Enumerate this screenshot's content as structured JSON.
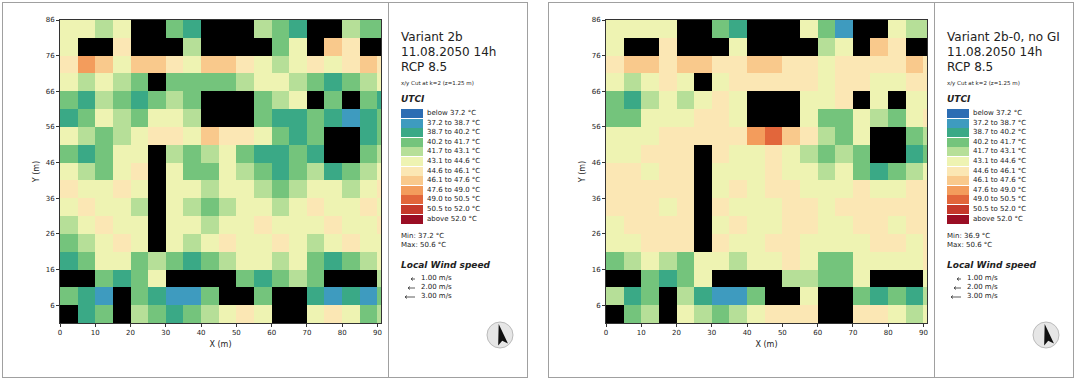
{
  "chart_data": [
    {
      "type": "heatmap",
      "title": [
        "Variant 2b",
        "11.08.2050 14h",
        "RCP 8.5"
      ],
      "subtitle": "x/y Cut at k=2 (z=1.25 m)",
      "x_label": "X (m)",
      "y_label": "Y (m)",
      "xlim": [
        0,
        91
      ],
      "ylim": [
        1,
        86
      ],
      "xticks": [
        0,
        10,
        20,
        30,
        40,
        50,
        60,
        70,
        80,
        90
      ],
      "yticks": [
        6,
        16,
        26,
        36,
        46,
        56,
        66,
        76,
        86
      ],
      "grid": false,
      "x": [
        2.5,
        7.5,
        12.5,
        17.5,
        22.5,
        27.5,
        32.5,
        37.5,
        42.5,
        47.5,
        52.5,
        57.5,
        62.5,
        67.5,
        72.5,
        77.5,
        82.5,
        87.5,
        92.5
      ],
      "y": [
        83.5,
        78.5,
        73.5,
        68.5,
        63.5,
        58.5,
        53.5,
        48.5,
        43.5,
        38.5,
        33.5,
        28.5,
        23.5,
        18.5,
        13.5,
        8.5,
        3.5
      ],
      "cells": [
        [
          43.8,
          43.8,
          42.4,
          43.8,
          null,
          null,
          41,
          39.5,
          null,
          null,
          null,
          42.4,
          41,
          39.5,
          null,
          null,
          42.4,
          41,
          41
        ],
        [
          43.8,
          null,
          null,
          45.3,
          null,
          null,
          null,
          42.4,
          null,
          null,
          null,
          null,
          41,
          43.8,
          null,
          46.8,
          45.3,
          null,
          null
        ],
        [
          45.3,
          48.3,
          46.8,
          43.8,
          46.8,
          46.8,
          45.3,
          43.8,
          46.8,
          46.8,
          45.3,
          43.8,
          42.4,
          43.8,
          45.3,
          43.8,
          45.3,
          46.8,
          45.3
        ],
        [
          43.8,
          42.4,
          43.8,
          42.4,
          41,
          null,
          41,
          41,
          41,
          41,
          42.4,
          43.8,
          43.8,
          42.4,
          41,
          39.5,
          41,
          42.4,
          43.8
        ],
        [
          41,
          39.5,
          42.4,
          41,
          39.5,
          41,
          42.4,
          41,
          null,
          null,
          null,
          41,
          42.4,
          43.8,
          null,
          41,
          null,
          41,
          39.5
        ],
        [
          39.5,
          41,
          43.8,
          42.4,
          41,
          43.8,
          43.8,
          42.4,
          null,
          null,
          null,
          41,
          39.5,
          39.5,
          41,
          39.5,
          38,
          39.5,
          41
        ],
        [
          43.8,
          42.4,
          41,
          42.4,
          43.8,
          45.3,
          45.3,
          43.8,
          46.8,
          45.3,
          45.3,
          43.8,
          41,
          39.5,
          41,
          null,
          null,
          39.5,
          41
        ],
        [
          41,
          39.5,
          41,
          43.8,
          43.8,
          null,
          42.4,
          41,
          42.4,
          43.8,
          41,
          39.5,
          39.5,
          41,
          39.5,
          null,
          null,
          41,
          42.4
        ],
        [
          43.8,
          42.4,
          41,
          43.8,
          45.3,
          null,
          43.8,
          41,
          41,
          43.8,
          42.4,
          41,
          39.5,
          41,
          42.4,
          39.5,
          41,
          42.4,
          43.8
        ],
        [
          45.3,
          43.8,
          43.8,
          45.3,
          43.8,
          null,
          43.8,
          43.8,
          42.4,
          43.8,
          43.8,
          42.4,
          41,
          42.4,
          43.8,
          43.8,
          42.4,
          43.8,
          45.3
        ],
        [
          43.8,
          45.3,
          43.8,
          43.8,
          42.4,
          null,
          43.8,
          42.4,
          41,
          42.4,
          43.8,
          43.8,
          42.4,
          43.8,
          45.3,
          43.8,
          43.8,
          45.3,
          43.8
        ],
        [
          42.4,
          43.8,
          45.3,
          43.8,
          43.8,
          null,
          43.8,
          43.8,
          42.4,
          43.8,
          43.8,
          45.3,
          43.8,
          43.8,
          43.8,
          45.3,
          43.8,
          43.8,
          45.3
        ],
        [
          41,
          42.4,
          43.8,
          45.3,
          43.8,
          null,
          43.8,
          42.4,
          43.8,
          45.3,
          43.8,
          43.8,
          45.3,
          43.8,
          42.4,
          43.8,
          45.3,
          43.8,
          43.8
        ],
        [
          39.5,
          41,
          43.8,
          43.8,
          41,
          42.4,
          41,
          39.5,
          41,
          42.4,
          43.8,
          43.8,
          42.4,
          43.8,
          41,
          39.5,
          41,
          42.4,
          43.8
        ],
        [
          null,
          null,
          41,
          39.5,
          41,
          43.8,
          null,
          null,
          null,
          null,
          41,
          39.5,
          41,
          42.4,
          41,
          null,
          null,
          null,
          42.4
        ],
        [
          41,
          39.5,
          38,
          null,
          41,
          39.5,
          38,
          38,
          41,
          null,
          null,
          41,
          null,
          null,
          39.5,
          38,
          39.5,
          38,
          41
        ],
        [
          null,
          39.5,
          41,
          null,
          42.4,
          41,
          39.5,
          41,
          42.4,
          43.8,
          45.3,
          43.8,
          null,
          null,
          43.8,
          45.3,
          43.8,
          41,
          42.4
        ]
      ],
      "colorbar": {
        "title": "UTCI",
        "bins": [
          37.2,
          38.7,
          40.2,
          41.7,
          43.1,
          44.6,
          46.1,
          47.6,
          49.0,
          50.5,
          52.0
        ],
        "labels": [
          "below 37.2 °C",
          "37.2 to 38.7 °C",
          "38.7 to 40.2 °C",
          "40.2 to 41.7 °C",
          "41.7 to 43.1 °C",
          "43.1 to 44.6 °C",
          "44.6 to 46.1 °C",
          "46.1 to 47.6 °C",
          "47.6 to 49.0 °C",
          "49.0 to 50.5 °C",
          "50.5 to 52.0 °C",
          "above 52.0 °C"
        ],
        "colors": [
          "#2c6db3",
          "#3e9bbf",
          "#3aa986",
          "#74c47c",
          "#b6df98",
          "#eef3b2",
          "#fbe7b4",
          "#f9c98c",
          "#f39c5c",
          "#e2663b",
          "#c5392b",
          "#9a0e24"
        ]
      },
      "annotations": [
        "Min: 37.2 °C",
        "Max: 50.6 °C"
      ],
      "wind_legend": {
        "title": "Local Wind speed",
        "labels": [
          "1.00 m/s",
          "2.00 m/s",
          "3.00 m/s"
        ]
      }
    },
    {
      "type": "heatmap",
      "title": [
        "Variant 2b-0, no GI",
        "11.08.2050 14h",
        "RCP 8.5"
      ],
      "subtitle": "x/y Cut at k=2 (z=1.25 m)",
      "x_label": "X (m)",
      "y_label": "Y (m)",
      "xlim": [
        0,
        91
      ],
      "ylim": [
        1,
        86
      ],
      "xticks": [
        0,
        10,
        20,
        30,
        40,
        50,
        60,
        70,
        80,
        90
      ],
      "yticks": [
        6,
        16,
        26,
        36,
        46,
        56,
        66,
        76,
        86
      ],
      "grid": false,
      "x": [
        2.5,
        7.5,
        12.5,
        17.5,
        22.5,
        27.5,
        32.5,
        37.5,
        42.5,
        47.5,
        52.5,
        57.5,
        62.5,
        67.5,
        72.5,
        77.5,
        82.5,
        87.5,
        92.5
      ],
      "y": [
        83.5,
        78.5,
        73.5,
        68.5,
        63.5,
        58.5,
        53.5,
        48.5,
        43.5,
        38.5,
        33.5,
        28.5,
        23.5,
        18.5,
        13.5,
        8.5,
        3.5
      ],
      "cells": [
        [
          43.8,
          43.8,
          43.8,
          43.8,
          null,
          null,
          41,
          39.5,
          null,
          null,
          null,
          43.8,
          41,
          38,
          null,
          null,
          43.8,
          42.4,
          42.4
        ],
        [
          43.8,
          null,
          null,
          45.3,
          null,
          null,
          null,
          43.8,
          null,
          null,
          null,
          null,
          42.4,
          43.8,
          null,
          46.8,
          45.3,
          null,
          null
        ],
        [
          45.3,
          46.8,
          46.8,
          45.3,
          46.8,
          46.8,
          45.3,
          45.3,
          46.8,
          46.8,
          45.3,
          45.3,
          43.8,
          45.3,
          45.3,
          45.3,
          45.3,
          46.8,
          45.3
        ],
        [
          43.8,
          42.4,
          43.8,
          45.3,
          43.8,
          null,
          43.8,
          45.3,
          45.3,
          45.3,
          45.3,
          45.3,
          43.8,
          45.3,
          45.3,
          43.8,
          43.8,
          45.3,
          45.3
        ],
        [
          41,
          39.5,
          42.4,
          43.8,
          42.4,
          43.8,
          45.3,
          43.8,
          null,
          null,
          null,
          43.8,
          43.8,
          45.3,
          null,
          43.8,
          null,
          43.8,
          43.8
        ],
        [
          41,
          41,
          43.8,
          43.8,
          43.8,
          45.3,
          45.3,
          43.8,
          null,
          null,
          null,
          43.8,
          41,
          41,
          43.8,
          42.4,
          41,
          43.8,
          45.3
        ],
        [
          43.8,
          43.8,
          43.8,
          45.3,
          45.3,
          45.3,
          45.3,
          45.3,
          48.3,
          49.7,
          46.8,
          45.3,
          42.4,
          41,
          43.8,
          null,
          null,
          41,
          42.4
        ],
        [
          43.8,
          43.8,
          45.3,
          45.3,
          45.3,
          null,
          45.3,
          43.8,
          43.8,
          45.3,
          43.8,
          42.4,
          41,
          42.4,
          41,
          null,
          null,
          39.5,
          41
        ],
        [
          45.3,
          45.3,
          43.8,
          45.3,
          45.3,
          null,
          43.8,
          43.8,
          43.8,
          45.3,
          43.8,
          43.8,
          42.4,
          43.8,
          41,
          39.5,
          41,
          42.4,
          43.8
        ],
        [
          45.3,
          45.3,
          45.3,
          45.3,
          45.3,
          null,
          43.8,
          45.3,
          43.8,
          45.3,
          45.3,
          43.8,
          43.8,
          43.8,
          45.3,
          43.8,
          43.8,
          45.3,
          45.3
        ],
        [
          45.3,
          45.3,
          45.3,
          43.8,
          45.3,
          null,
          45.3,
          43.8,
          43.8,
          43.8,
          45.3,
          45.3,
          43.8,
          45.3,
          45.3,
          45.3,
          45.3,
          45.3,
          45.3
        ],
        [
          43.8,
          45.3,
          45.3,
          45.3,
          45.3,
          null,
          43.8,
          45.3,
          43.8,
          43.8,
          45.3,
          45.3,
          43.8,
          43.8,
          45.3,
          45.3,
          43.8,
          45.3,
          45.3
        ],
        [
          43.8,
          43.8,
          45.3,
          45.3,
          45.3,
          null,
          45.3,
          43.8,
          43.8,
          45.3,
          45.3,
          43.8,
          43.8,
          43.8,
          43.8,
          45.3,
          45.3,
          43.8,
          45.3
        ],
        [
          41,
          42.4,
          43.8,
          42.4,
          41,
          43.8,
          43.8,
          42.4,
          43.8,
          43.8,
          45.3,
          43.8,
          41,
          41,
          43.8,
          43.8,
          43.8,
          43.8,
          45.3
        ],
        [
          null,
          null,
          41,
          39.5,
          41,
          43.8,
          null,
          null,
          null,
          null,
          42.4,
          42.4,
          41,
          41,
          43.8,
          null,
          null,
          null,
          43.8
        ],
        [
          42.4,
          39.5,
          41,
          null,
          42.4,
          39.5,
          38,
          38,
          41,
          null,
          null,
          43.8,
          null,
          null,
          41,
          39.5,
          41,
          39.5,
          42.4
        ],
        [
          null,
          41,
          42.4,
          null,
          43.8,
          42.4,
          41,
          42.4,
          43.8,
          45.3,
          45.3,
          45.3,
          null,
          null,
          45.3,
          45.3,
          43.8,
          42.4,
          43.8
        ]
      ],
      "colorbar": {
        "title": "UTCI",
        "bins": [
          37.2,
          38.7,
          40.2,
          41.7,
          43.1,
          44.6,
          46.1,
          47.6,
          49.0,
          50.5,
          52.0
        ],
        "labels": [
          "below 37.2 °C",
          "37.2 to 38.7 °C",
          "38.7 to 40.2 °C",
          "40.2 to 41.7 °C",
          "41.7 to 43.1 °C",
          "43.1 to 44.6 °C",
          "44.6 to 46.1 °C",
          "46.1 to 47.6 °C",
          "47.6 to 49.0 °C",
          "49.0 to 50.5 °C",
          "50.5 to 52.0 °C",
          "above 52.0 °C"
        ],
        "colors": [
          "#2c6db3",
          "#3e9bbf",
          "#3aa986",
          "#74c47c",
          "#b6df98",
          "#eef3b2",
          "#fbe7b4",
          "#f9c98c",
          "#f39c5c",
          "#e2663b",
          "#c5392b",
          "#9a0e24"
        ]
      },
      "annotations": [
        "Min: 36.9 °C",
        "Max: 50.6 °C"
      ],
      "wind_legend": {
        "title": "Local Wind speed",
        "labels": [
          "1.00 m/s",
          "2.00 m/s",
          "3.00 m/s"
        ]
      }
    }
  ]
}
